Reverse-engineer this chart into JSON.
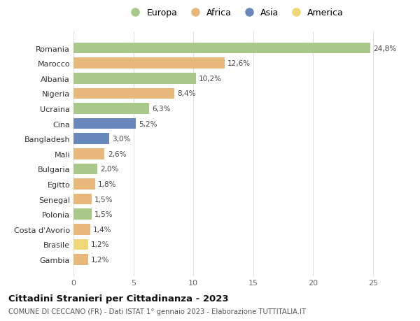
{
  "countries": [
    "Romania",
    "Marocco",
    "Albania",
    "Nigeria",
    "Ucraina",
    "Cina",
    "Bangladesh",
    "Mali",
    "Bulgaria",
    "Egitto",
    "Senegal",
    "Polonia",
    "Costa d'Avorio",
    "Brasile",
    "Gambia"
  ],
  "values": [
    24.8,
    12.6,
    10.2,
    8.4,
    6.3,
    5.2,
    3.0,
    2.6,
    2.0,
    1.8,
    1.5,
    1.5,
    1.4,
    1.2,
    1.2
  ],
  "labels": [
    "24,8%",
    "12,6%",
    "10,2%",
    "8,4%",
    "6,3%",
    "5,2%",
    "3,0%",
    "2,6%",
    "2,0%",
    "1,8%",
    "1,5%",
    "1,5%",
    "1,4%",
    "1,2%",
    "1,2%"
  ],
  "continent": [
    "Europa",
    "Africa",
    "Europa",
    "Africa",
    "Europa",
    "Asia",
    "Asia",
    "Africa",
    "Europa",
    "Africa",
    "Africa",
    "Europa",
    "Africa",
    "America",
    "Africa"
  ],
  "colors": {
    "Europa": "#a8c98a",
    "Africa": "#e8b87a",
    "Asia": "#6888bb",
    "America": "#f0d878"
  },
  "title": "Cittadini Stranieri per Cittadinanza - 2023",
  "subtitle": "COMUNE DI CECCANO (FR) - Dati ISTAT 1° gennaio 2023 - Elaborazione TUTTITALIA.IT",
  "xlim": [
    0,
    27
  ],
  "xticks": [
    0,
    5,
    10,
    15,
    20,
    25
  ],
  "background_color": "#ffffff",
  "grid_color": "#dddddd",
  "bar_height": 0.72
}
